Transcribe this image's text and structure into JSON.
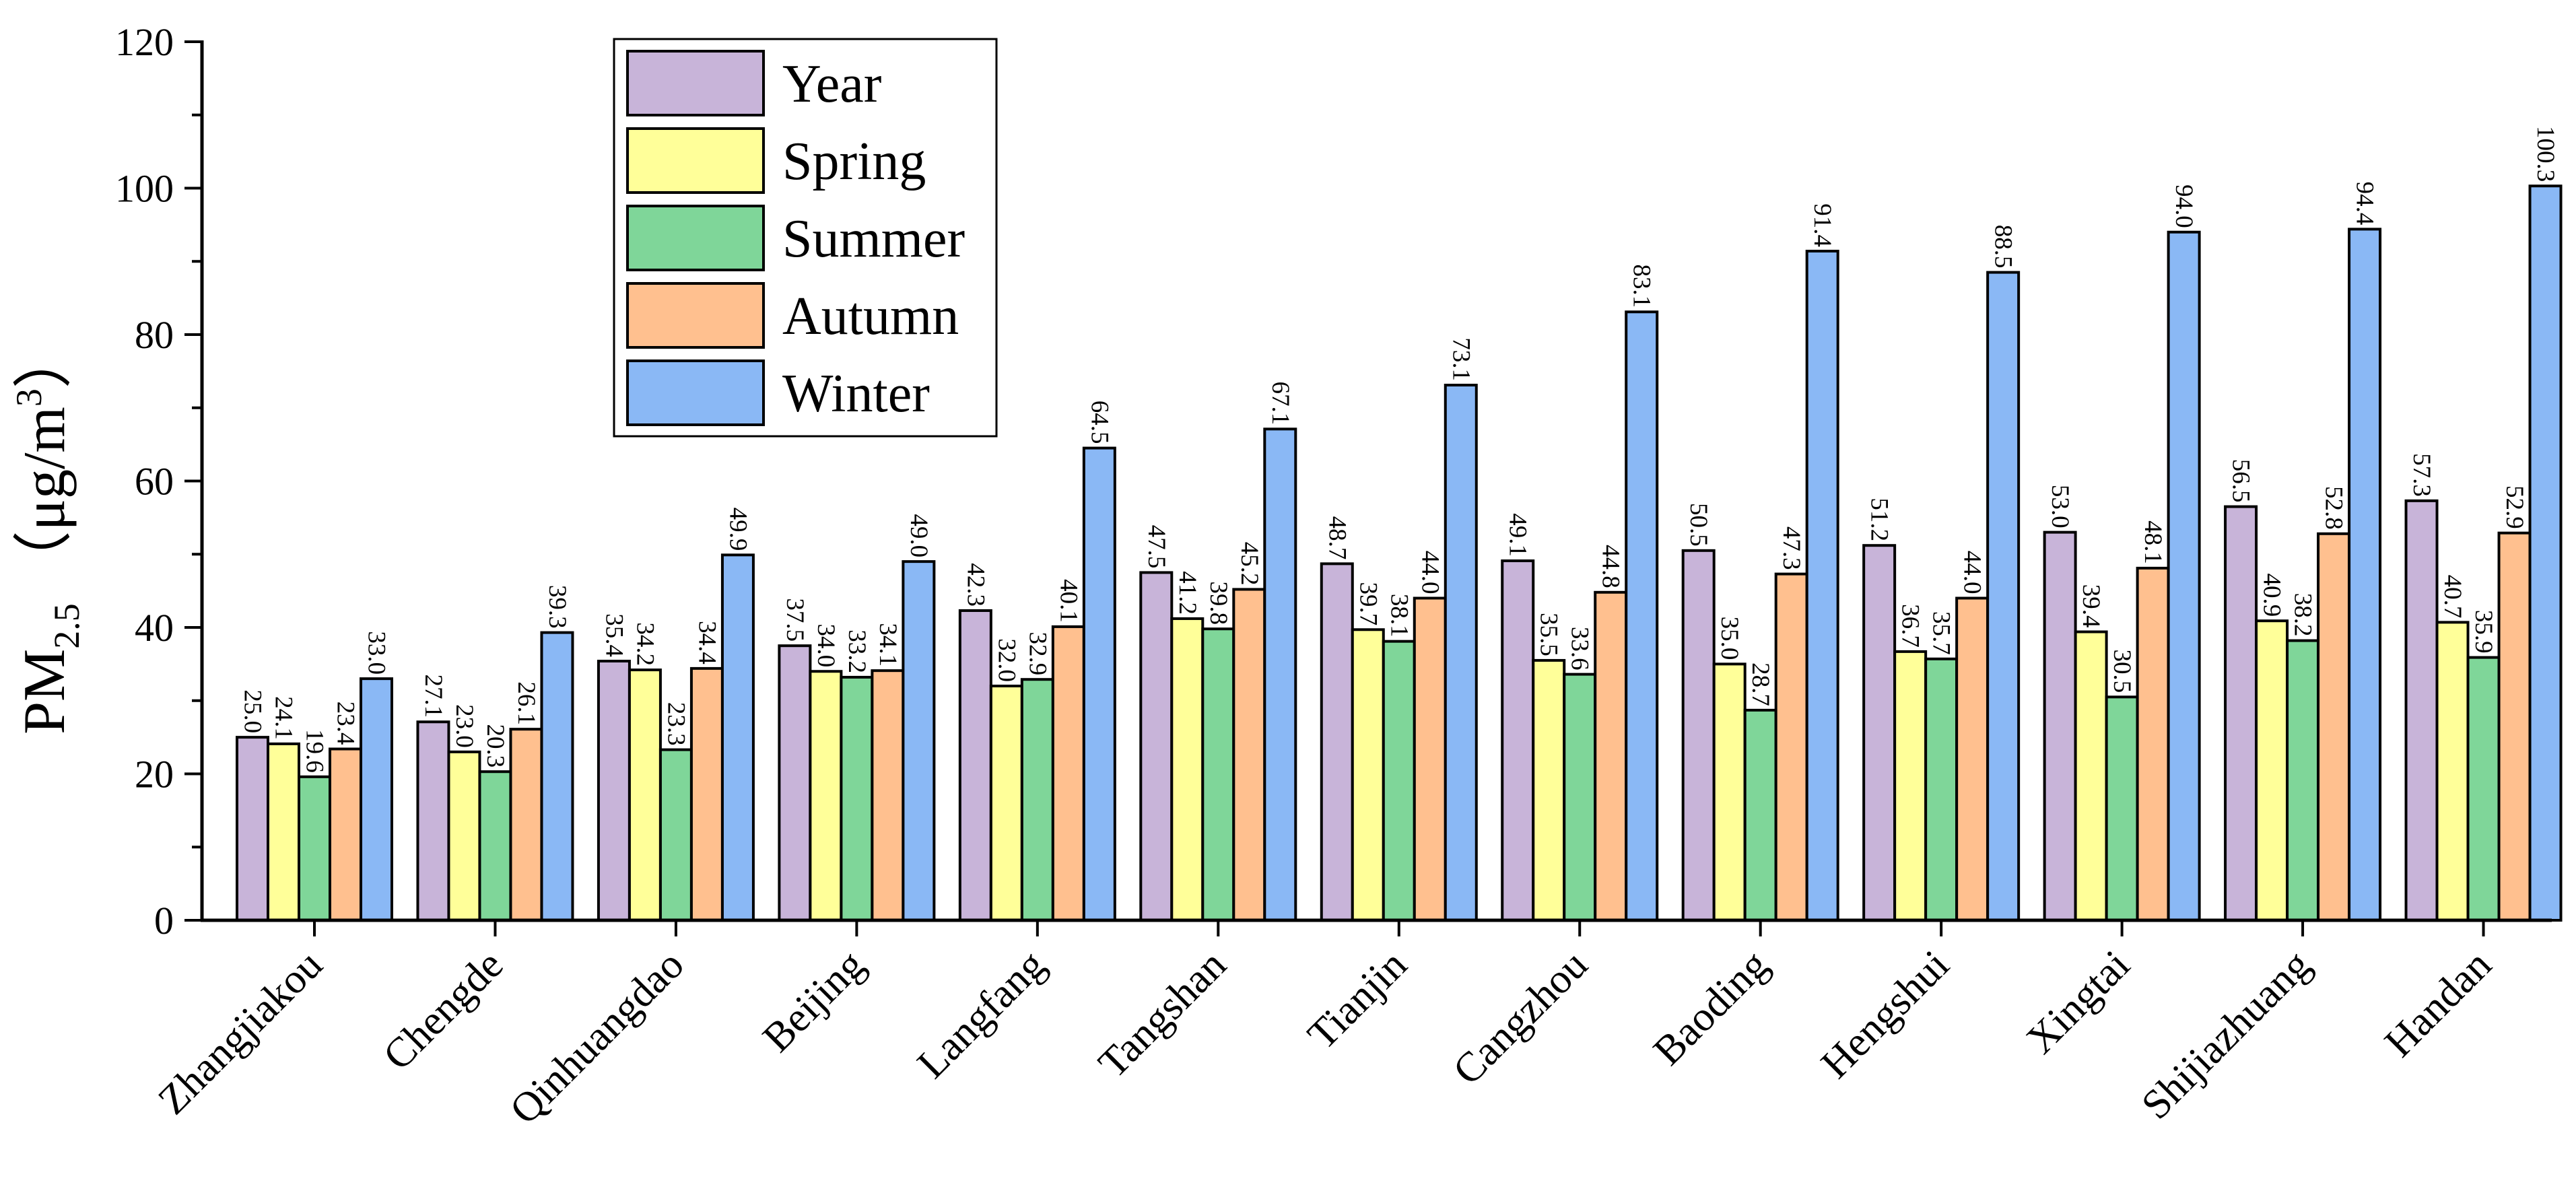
{
  "chart_data": {
    "type": "bar",
    "title": "",
    "ylabel": {
      "main": "PM",
      "subscript": "2.5",
      "unit_prefix": "（μg/m",
      "unit_superscript": "3",
      "unit_suffix": "）"
    },
    "xlabel": "",
    "ylim": [
      0,
      120
    ],
    "yticks": [
      "0",
      "20",
      "40",
      "60",
      "80",
      "100",
      "120"
    ],
    "legend_position": "top-left",
    "categories": [
      "Zhangjiakou",
      "Chengde",
      "Qinhuangdao",
      "Beijing",
      "Langfang",
      "Tangshan",
      "Tianjin",
      "Cangzhou",
      "Baoding",
      "Hengshui",
      "Xingtai",
      "Shijiazhuang",
      "Handan"
    ],
    "series": [
      {
        "name": "Year",
        "color": "#c8b4d9",
        "values": [
          25.0,
          27.1,
          35.4,
          37.5,
          42.3,
          47.5,
          48.7,
          49.1,
          50.5,
          51.2,
          53.0,
          56.5,
          57.3
        ],
        "labels": [
          "25.0",
          "27.1",
          "35.4",
          "37.5",
          "42.3",
          "47.5",
          "48.7",
          "49.1",
          "50.5",
          "51.2",
          "53.0",
          "56.5",
          "57.3"
        ]
      },
      {
        "name": "Spring",
        "color": "#ffff99",
        "values": [
          24.1,
          23.0,
          34.2,
          34.0,
          32.0,
          41.2,
          39.7,
          35.5,
          35.0,
          36.7,
          39.4,
          40.9,
          40.7
        ],
        "labels": [
          "24.1",
          "23.0",
          "34.2",
          "34.0",
          "32.0",
          "41.2",
          "39.7",
          "35.5",
          "35.0",
          "36.7",
          "39.4",
          "40.9",
          "40.7"
        ]
      },
      {
        "name": "Summer",
        "color": "#7fd699",
        "values": [
          19.6,
          20.3,
          23.3,
          33.2,
          32.9,
          39.8,
          38.1,
          33.6,
          28.7,
          35.7,
          30.5,
          38.2,
          35.9
        ],
        "labels": [
          "19.6",
          "20.3",
          "23.3",
          "33.2",
          "32.9",
          "39.8",
          "38.1",
          "33.6",
          "28.7",
          "35.7",
          "30.5",
          "38.2",
          "35.9"
        ]
      },
      {
        "name": "Autumn",
        "color": "#ffc08f",
        "values": [
          23.4,
          26.1,
          34.4,
          34.1,
          40.1,
          45.2,
          44.0,
          44.8,
          47.3,
          44.0,
          48.1,
          52.8,
          52.9
        ],
        "labels": [
          "23.4",
          "26.1",
          "34.4",
          "34.1",
          "40.1",
          "45.2",
          "44.0",
          "44.8",
          "47.3",
          "44.0",
          "48.1",
          "52.8",
          "52.9"
        ]
      },
      {
        "name": "Winter",
        "color": "#8ab8f5",
        "values": [
          33.0,
          39.3,
          49.9,
          49.0,
          64.5,
          67.1,
          73.1,
          83.1,
          91.4,
          88.5,
          94.0,
          94.4,
          100.3
        ],
        "labels": [
          "33.0",
          "39.3",
          "49.9",
          "49.0",
          "64.5",
          "67.1",
          "73.1",
          "83.1",
          "91.4",
          "88.5",
          "94.0",
          "94.4",
          "100.3"
        ]
      }
    ]
  }
}
